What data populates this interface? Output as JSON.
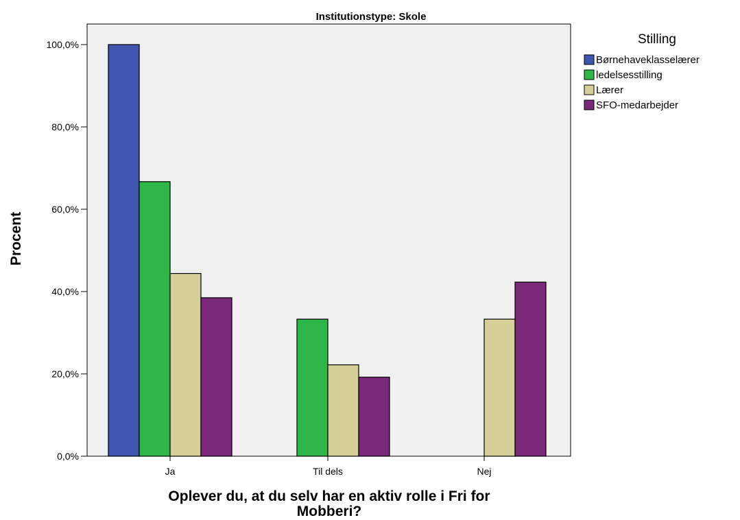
{
  "chart_data": {
    "type": "bar",
    "title": "Institutionstype: Skole",
    "xlabel_lines": [
      "Oplever du, at du selv har en aktiv rolle i Fri for",
      "Mobberi?"
    ],
    "ylabel": "Procent",
    "categories": [
      "Ja",
      "Til dels",
      "Nej"
    ],
    "ylim": [
      0,
      105
    ],
    "yticks": [
      0,
      20,
      40,
      60,
      80,
      100
    ],
    "ytick_labels": [
      "0,0%",
      "20,0%",
      "40,0%",
      "60,0%",
      "80,0%",
      "100,0%"
    ],
    "legend_title": "Stilling",
    "legend_position": "right",
    "grid": false,
    "series": [
      {
        "name": "Børnehaveklasselærer",
        "color": "#3f55b0",
        "values": [
          100.0,
          0,
          0
        ]
      },
      {
        "name": "ledelsesstilling",
        "color": "#2fb648",
        "values": [
          66.7,
          33.3,
          0
        ]
      },
      {
        "name": "Lærer",
        "color": "#d6cf98",
        "values": [
          44.4,
          22.2,
          33.3
        ]
      },
      {
        "name": "SFO-medarbejder",
        "color": "#7a2878",
        "values": [
          38.5,
          19.2,
          42.3
        ]
      }
    ]
  }
}
